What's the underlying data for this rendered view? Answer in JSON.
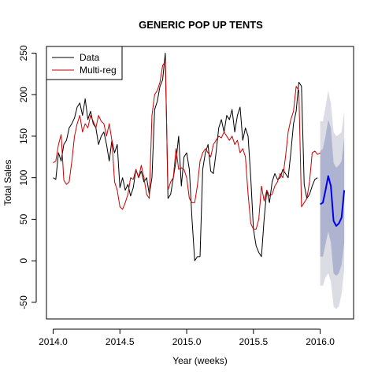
{
  "chart_data": {
    "type": "line",
    "title": "GENERIC POP UP TENTS",
    "xlabel": "Year (weeks)",
    "ylabel": "Total Sales",
    "xlim": [
      2013.95,
      2016.25
    ],
    "ylim": [
      -70,
      258
    ],
    "x_ticks": [
      2014.0,
      2014.5,
      2015.0,
      2015.5,
      2016.0
    ],
    "x_tick_labels": [
      "2014.0",
      "2014.5",
      "2015.0",
      "2015.5",
      "2016.0"
    ],
    "y_ticks": [
      -50,
      0,
      50,
      100,
      150,
      200,
      250
    ],
    "y_tick_labels": [
      "-50",
      "0",
      "50",
      "100",
      "150",
      "200",
      "250"
    ],
    "legend": {
      "position": "top-left",
      "entries": [
        {
          "label": "Data",
          "color": "#000000"
        },
        {
          "label": "Multi-reg",
          "color": "#cc0000"
        }
      ]
    },
    "series": [
      {
        "name": "Data",
        "color": "#000000",
        "x": [
          2014.0,
          2014.02,
          2014.04,
          2014.06,
          2014.08,
          2014.1,
          2014.12,
          2014.14,
          2014.16,
          2014.18,
          2014.2,
          2014.22,
          2014.24,
          2014.26,
          2014.28,
          2014.3,
          2014.32,
          2014.34,
          2014.36,
          2014.38,
          2014.4,
          2014.42,
          2014.44,
          2014.46,
          2014.48,
          2014.5,
          2014.52,
          2014.54,
          2014.56,
          2014.58,
          2014.6,
          2014.62,
          2014.64,
          2014.66,
          2014.68,
          2014.7,
          2014.72,
          2014.74,
          2014.76,
          2014.78,
          2014.8,
          2014.82,
          2014.84,
          2014.86,
          2014.88,
          2014.9,
          2014.92,
          2014.94,
          2014.96,
          2014.98,
          2015.0,
          2015.02,
          2015.04,
          2015.06,
          2015.08,
          2015.1,
          2015.12,
          2015.14,
          2015.16,
          2015.18,
          2015.2,
          2015.22,
          2015.24,
          2015.26,
          2015.28,
          2015.3,
          2015.32,
          2015.34,
          2015.36,
          2015.38,
          2015.4,
          2015.42,
          2015.44,
          2015.46,
          2015.48,
          2015.5,
          2015.52,
          2015.54,
          2015.56,
          2015.58,
          2015.6,
          2015.62,
          2015.64,
          2015.66,
          2015.68,
          2015.7,
          2015.72,
          2015.74,
          2015.76,
          2015.78,
          2015.8,
          2015.82,
          2015.84,
          2015.86,
          2015.88,
          2015.9,
          2015.92,
          2015.94,
          2015.96,
          2015.98
        ],
        "values": [
          100,
          98,
          130,
          120,
          140,
          145,
          160,
          165,
          172,
          185,
          190,
          175,
          195,
          170,
          180,
          165,
          160,
          140,
          150,
          155,
          140,
          120,
          145,
          130,
          140,
          88,
          100,
          85,
          92,
          78,
          88,
          110,
          100,
          108,
          95,
          100,
          80,
          100,
          182,
          192,
          210,
          218,
          250,
          75,
          80,
          100,
          120,
          150,
          90,
          125,
          130,
          110,
          50,
          0,
          5,
          5,
          110,
          130,
          140,
          108,
          105,
          130,
          160,
          170,
          155,
          175,
          170,
          182,
          155,
          175,
          185,
          145,
          160,
          150,
          100,
          38,
          18,
          10,
          5,
          50,
          85,
          70,
          95,
          105,
          98,
          100,
          110,
          105,
          100,
          130,
          165,
          180,
          215,
          210,
          92,
          75,
          80,
          90,
          98,
          100
        ]
      },
      {
        "name": "Multi-reg",
        "color": "#cc0000",
        "x": [
          2014.0,
          2014.02,
          2014.04,
          2014.06,
          2014.08,
          2014.1,
          2014.12,
          2014.14,
          2014.16,
          2014.18,
          2014.2,
          2014.22,
          2014.24,
          2014.26,
          2014.28,
          2014.3,
          2014.32,
          2014.34,
          2014.36,
          2014.38,
          2014.4,
          2014.42,
          2014.44,
          2014.46,
          2014.48,
          2014.5,
          2014.52,
          2014.54,
          2014.56,
          2014.58,
          2014.6,
          2014.62,
          2014.64,
          2014.66,
          2014.68,
          2014.7,
          2014.72,
          2014.74,
          2014.76,
          2014.78,
          2014.8,
          2014.82,
          2014.84,
          2014.86,
          2014.88,
          2014.9,
          2014.92,
          2014.94,
          2014.96,
          2014.98,
          2015.0,
          2015.02,
          2015.04,
          2015.06,
          2015.08,
          2015.1,
          2015.12,
          2015.14,
          2015.16,
          2015.18,
          2015.2,
          2015.22,
          2015.24,
          2015.26,
          2015.28,
          2015.3,
          2015.32,
          2015.34,
          2015.36,
          2015.38,
          2015.4,
          2015.42,
          2015.44,
          2015.46,
          2015.48,
          2015.5,
          2015.52,
          2015.54,
          2015.56,
          2015.58,
          2015.6,
          2015.62,
          2015.64,
          2015.66,
          2015.68,
          2015.7,
          2015.72,
          2015.74,
          2015.76,
          2015.78,
          2015.8,
          2015.82,
          2015.84,
          2015.86,
          2015.88,
          2015.9,
          2015.92,
          2015.94,
          2015.96,
          2015.98,
          2016.0
        ],
        "values": [
          118,
          120,
          140,
          152,
          97,
          92,
          95,
          120,
          150,
          165,
          175,
          155,
          165,
          160,
          175,
          168,
          160,
          175,
          168,
          165,
          150,
          165,
          145,
          95,
          85,
          65,
          62,
          70,
          80,
          100,
          98,
          110,
          100,
          115,
          100,
          80,
          75,
          175,
          200,
          205,
          215,
          235,
          240,
          85,
          95,
          100,
          135,
          110,
          112,
          110,
          100,
          75,
          70,
          70,
          90,
          120,
          130,
          135,
          130,
          125,
          140,
          145,
          150,
          148,
          155,
          150,
          145,
          150,
          140,
          145,
          130,
          135,
          125,
          80,
          45,
          38,
          38,
          50,
          90,
          72,
          85,
          78,
          80,
          90,
          95,
          105,
          100,
          125,
          155,
          170,
          180,
          210,
          205,
          65,
          70,
          75,
          95,
          130,
          132,
          128,
          130
        ]
      },
      {
        "name": "",
        "color": "#0000ee",
        "x": [
          2016.0,
          2016.02,
          2016.04,
          2016.06,
          2016.08,
          2016.1,
          2016.12,
          2016.14,
          2016.16,
          2016.18
        ],
        "values": [
          68,
          70,
          85,
          102,
          90,
          48,
          42,
          45,
          52,
          85
        ]
      }
    ],
    "bands": [
      {
        "level": "outer",
        "color": "#dcdce4",
        "x": [
          2016.0,
          2016.02,
          2016.04,
          2016.06,
          2016.08,
          2016.1,
          2016.12,
          2016.14,
          2016.16,
          2016.18
        ],
        "lower": [
          -30,
          -30,
          -20,
          -15,
          -25,
          -55,
          -58,
          -55,
          -40,
          -10
        ],
        "upper": [
          168,
          168,
          185,
          205,
          190,
          155,
          150,
          152,
          155,
          180
        ]
      },
      {
        "level": "inner",
        "color": "#aeb4d0",
        "x": [
          2016.0,
          2016.02,
          2016.04,
          2016.06,
          2016.08,
          2016.1,
          2016.12,
          2016.14,
          2016.16,
          2016.18
        ],
        "lower": [
          5,
          5,
          20,
          35,
          22,
          -15,
          -18,
          -15,
          -5,
          22
        ],
        "upper": [
          132,
          135,
          150,
          170,
          160,
          118,
          112,
          115,
          120,
          148
        ]
      }
    ]
  }
}
